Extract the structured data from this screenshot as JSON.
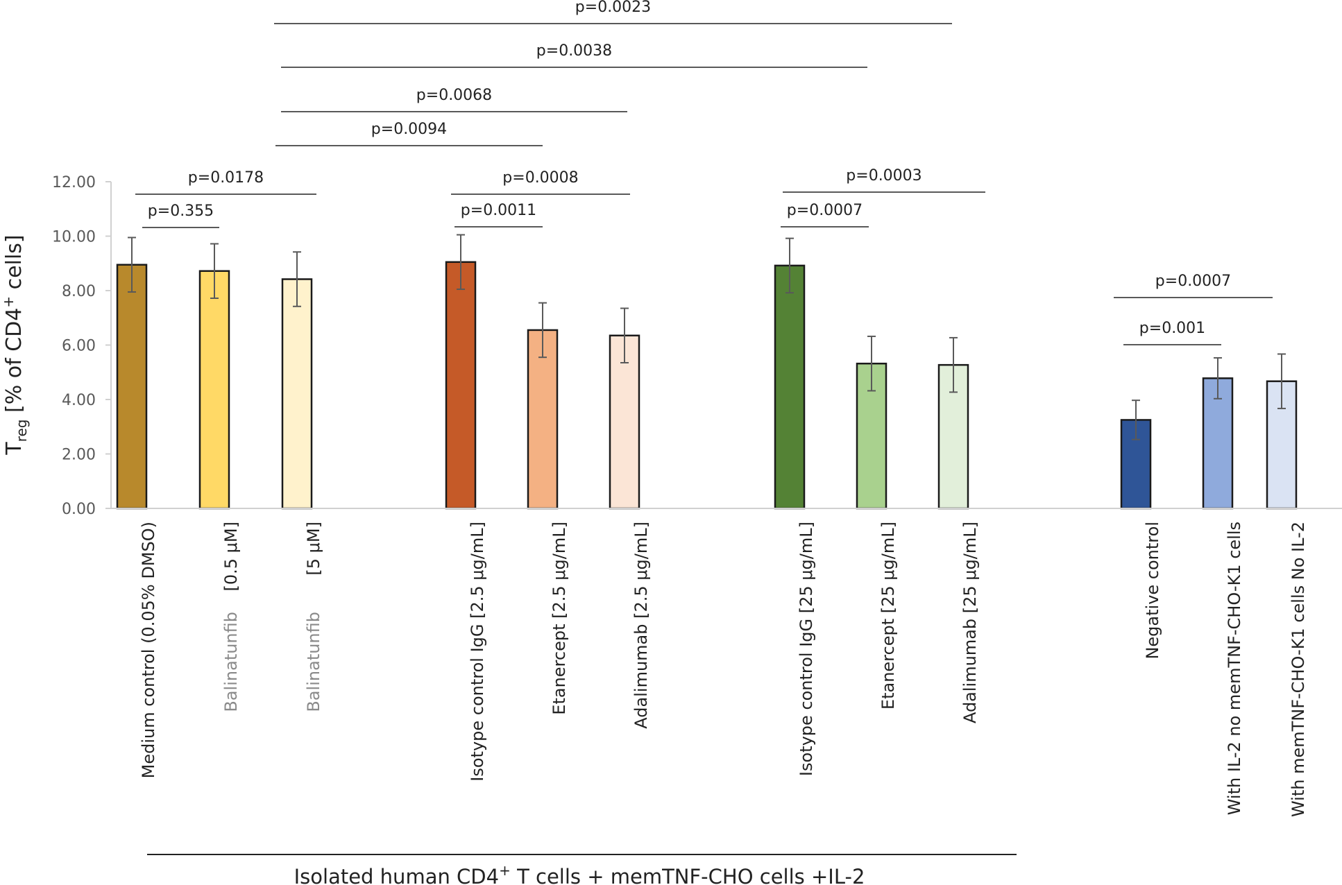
{
  "chart_data": {
    "type": "bar",
    "ylabel": {
      "main": "T",
      "sub": "reg",
      "rest": " [% of CD4",
      "sup": "+",
      "end": " cells]"
    },
    "xlabel": {
      "pre": "Isolated human CD4",
      "sup": "+",
      "post": " T cells + memTNF-CHO cells +IL-2"
    },
    "ylim": [
      0,
      12
    ],
    "yticks": [
      "0.00",
      "2.00",
      "4.00",
      "6.00",
      "8.00",
      "10.00",
      "12.00"
    ],
    "grid": false,
    "categories": [
      {
        "label": "Medium control (0.05% DMSO)",
        "value": 8.95,
        "error": 1.0,
        "color": "#b8892c"
      },
      {
        "label": "Balinatunfib",
        "suffix": "[0.5 μM]",
        "value": 8.72,
        "error": 1.0,
        "color": "#ffd966"
      },
      {
        "label": "Balinatunfib",
        "suffix": "[5 μM]",
        "value": 8.42,
        "error": 1.0,
        "color": "#fff2cc"
      },
      {
        "label": "Isotype control IgG  [2.5 μg/mL]",
        "value": 9.05,
        "error": 1.0,
        "color": "#c55a28"
      },
      {
        "label": "Etanercept  [2.5 μg/mL]",
        "value": 6.55,
        "error": 1.0,
        "color": "#f4b183"
      },
      {
        "label": "Adalimumab  [2.5 μg/mL]",
        "value": 6.35,
        "error": 1.0,
        "color": "#fbe5d6"
      },
      {
        "label": "Isotype control IgG  [25 μg/mL]",
        "value": 8.92,
        "error": 1.0,
        "color": "#548235"
      },
      {
        "label": "Etanercept  [25 μg/mL]",
        "value": 5.32,
        "error": 1.0,
        "color": "#a9d18e"
      },
      {
        "label": "Adalimumab  [25 μg/mL]",
        "value": 5.27,
        "error": 1.0,
        "color": "#e2efda"
      },
      {
        "label": "Negative control",
        "value": 3.25,
        "error": 0.72,
        "color": "#2f5597"
      },
      {
        "label": "With IL-2 no memTNF-CHO-K1 cells",
        "value": 4.78,
        "error": 0.75,
        "color": "#8faadc"
      },
      {
        "label": "With memTNF-CHO-K1 cells No IL-2",
        "value": 4.67,
        "error": 1.0,
        "color": "#dae3f3"
      }
    ],
    "comparisons": [
      {
        "label": "p=0.0023",
        "from": 2,
        "to": 8
      },
      {
        "label": "p=0.0038",
        "from": 2,
        "to": 7
      },
      {
        "label": "p=0.0068",
        "from": 2,
        "to": 5
      },
      {
        "label": "p=0.0094",
        "from": 2,
        "to": 4
      },
      {
        "label": "p=0.0178",
        "from": 0,
        "to": 2
      },
      {
        "label": "p=0.355",
        "from": 0,
        "to": 1
      },
      {
        "label": "p=0.0008",
        "from": 3,
        "to": 5
      },
      {
        "label": "p=0.0011",
        "from": 3,
        "to": 4
      },
      {
        "label": "p=0.0003",
        "from": 6,
        "to": 8
      },
      {
        "label": "p=0.0007",
        "from": 6,
        "to": 7
      },
      {
        "label": "p=0.0007",
        "from": 9,
        "to": 11
      },
      {
        "label": "p=0.001",
        "from": 9,
        "to": 10
      }
    ]
  }
}
